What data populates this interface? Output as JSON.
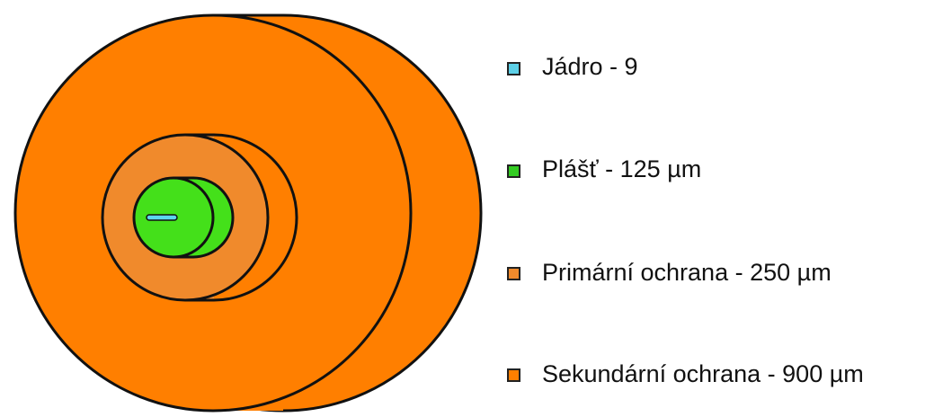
{
  "legend": {
    "items": [
      {
        "label": "Jádro - 9"
      },
      {
        "label": "Plášť - 125 µm"
      },
      {
        "label": "Primární ochrana - 250 µm"
      },
      {
        "label": "Sekundární ochrana - 900 µm"
      }
    ]
  }
}
